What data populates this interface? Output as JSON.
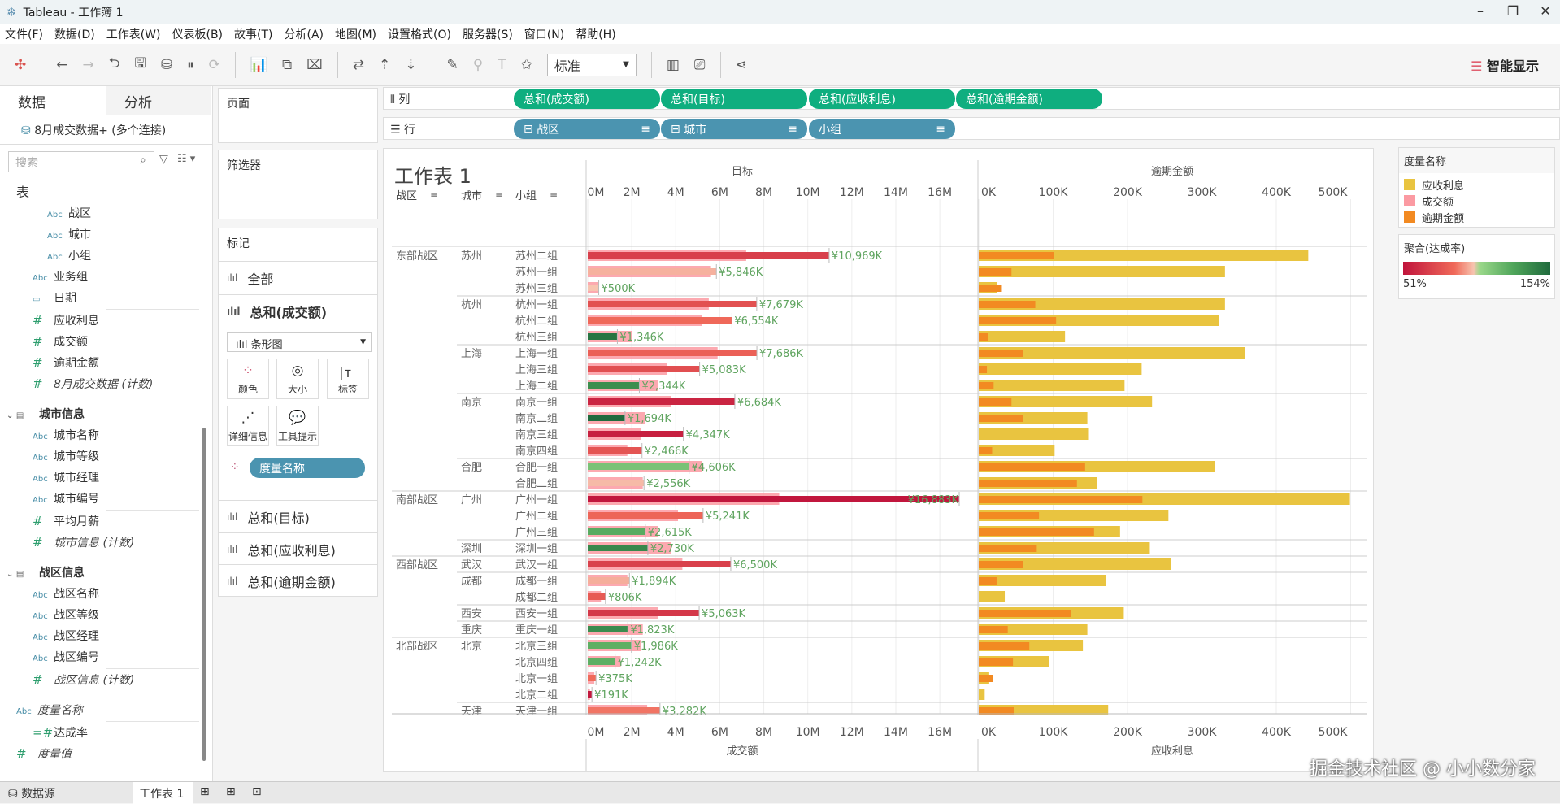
{
  "window": {
    "title": "Tableau - 工作簿 1",
    "minimize": "–",
    "restore": "❐",
    "close": "✕"
  },
  "menu": [
    "文件(F)",
    "数据(D)",
    "工作表(W)",
    "仪表板(B)",
    "故事(T)",
    "分析(A)",
    "地图(M)",
    "设置格式(O)",
    "服务器(S)",
    "窗口(N)",
    "帮助(H)"
  ],
  "toolbar": {
    "fit": "标准",
    "show_me": "智能显示"
  },
  "datapane": {
    "tab_data": "数据",
    "tab_analysis": "分析",
    "connection": "8月成交数据+ (多个连接)",
    "search_placeholder": "搜索",
    "fields": [
      {
        "t": "hdr0",
        "label": "表"
      },
      {
        "t": "dim",
        "label": "战区",
        "indent": 2
      },
      {
        "t": "dim",
        "label": "城市",
        "indent": 2
      },
      {
        "t": "dim",
        "label": "小组",
        "indent": 2
      },
      {
        "t": "dim",
        "label": "业务组"
      },
      {
        "t": "date",
        "label": "日期"
      },
      {
        "t": "line"
      },
      {
        "t": "num",
        "label": "应收利息"
      },
      {
        "t": "num",
        "label": "成交额"
      },
      {
        "t": "num",
        "label": "逾期金额"
      },
      {
        "t": "numi",
        "label": "8月成交数据 (计数)"
      },
      {
        "t": "sp"
      },
      {
        "t": "hdr",
        "label": "城市信息"
      },
      {
        "t": "dim",
        "label": "城市名称"
      },
      {
        "t": "dim",
        "label": "城市等级"
      },
      {
        "t": "dim",
        "label": "城市经理"
      },
      {
        "t": "dim",
        "label": "城市编号"
      },
      {
        "t": "line"
      },
      {
        "t": "num",
        "label": "平均月薪"
      },
      {
        "t": "numi",
        "label": "城市信息 (计数)"
      },
      {
        "t": "sp"
      },
      {
        "t": "hdr",
        "label": "战区信息"
      },
      {
        "t": "dim",
        "label": "战区名称"
      },
      {
        "t": "dim",
        "label": "战区等级"
      },
      {
        "t": "dim",
        "label": "战区经理"
      },
      {
        "t": "dim",
        "label": "战区编号"
      },
      {
        "t": "line"
      },
      {
        "t": "numi",
        "label": "战区信息 (计数)"
      },
      {
        "t": "sp"
      },
      {
        "t": "dimi",
        "label": "度量名称",
        "indent": 0
      },
      {
        "t": "line"
      },
      {
        "t": "calc",
        "label": "达成率"
      },
      {
        "t": "numi",
        "label": "度量值",
        "indent": 0
      }
    ]
  },
  "shelves": {
    "pages": "页面",
    "filters": "筛选器",
    "columns_label": "列",
    "rows_label": "行",
    "columns": [
      "总和(成交额)",
      "总和(目标)",
      "总和(应收利息)",
      "总和(逾期金额)"
    ],
    "rows": [
      "战区",
      "城市",
      "小组"
    ]
  },
  "marks": {
    "title": "标记",
    "all": "全部",
    "m1": "总和(成交额)",
    "mark_type": "条形图",
    "color": "颜色",
    "size": "大小",
    "label": "标签",
    "detail": "详细信息",
    "tooltip": "工具提示",
    "color_pill": "度量名称",
    "m2": "总和(目标)",
    "m3": "总和(应收利息)",
    "m4": "总和(逾期金额)"
  },
  "legend": {
    "title": "度量名称",
    "items": [
      {
        "label": "应收利息",
        "color": "#e9c440"
      },
      {
        "label": "成交额",
        "color": "#fb9aa2"
      },
      {
        "label": "逾期金额",
        "color": "#f28a22"
      }
    ],
    "rate_title": "聚合(达成率)",
    "rate_min": "51%",
    "rate_max": "154%"
  },
  "tabs": {
    "datasource": "数据源",
    "sheet": "工作表 1"
  },
  "watermark": "掘金技术社区 @ 小小数分家",
  "chart_data": {
    "type": "bar",
    "title": "工作表 1",
    "row_headers": [
      "战区",
      "城市",
      "小组"
    ],
    "left": {
      "top_title": "目标",
      "bottom_title": "成交额",
      "ticks": [
        "0M",
        "2M",
        "4M",
        "6M",
        "8M",
        "10M",
        "12M",
        "14M",
        "16M"
      ],
      "xlim": [
        0,
        16
      ]
    },
    "right": {
      "top_title": "逾期金额",
      "bottom_title": "应收利息",
      "ticks": [
        "0K",
        "100K",
        "200K",
        "300K",
        "400K",
        "500K"
      ],
      "xlim": [
        0,
        500
      ]
    },
    "rows": [
      {
        "region": "东部战区",
        "city": "苏州",
        "group": "苏州二组",
        "deal": 7.2,
        "target": 10.969,
        "label": "¥10,969K",
        "interest": 443,
        "overdue": 101
      },
      {
        "region": "",
        "city": "",
        "group": "苏州一组",
        "deal": 5.6,
        "target": 5.846,
        "label": "¥5,846K",
        "interest": 331,
        "overdue": 44
      },
      {
        "region": "",
        "city": "",
        "group": "苏州三组",
        "deal": 0.5,
        "target": 0.5,
        "label": "¥500K",
        "interest": 25,
        "overdue": 30
      },
      {
        "region": "",
        "city": "杭州",
        "group": "杭州一组",
        "deal": 5.5,
        "target": 7.679,
        "label": "¥7,679K",
        "interest": 331,
        "overdue": 76
      },
      {
        "region": "",
        "city": "",
        "group": "杭州二组",
        "deal": 5.2,
        "target": 6.554,
        "label": "¥6,554K",
        "interest": 323,
        "overdue": 104
      },
      {
        "region": "",
        "city": "",
        "group": "杭州三组",
        "deal": 2.0,
        "target": 1.346,
        "label": "¥1,346K",
        "interest": 116,
        "overdue": 12
      },
      {
        "region": "",
        "city": "上海",
        "group": "上海一组",
        "deal": 5.9,
        "target": 7.686,
        "label": "¥7,686K",
        "interest": 358,
        "overdue": 60
      },
      {
        "region": "",
        "city": "",
        "group": "上海三组",
        "deal": 3.6,
        "target": 5.083,
        "label": "¥5,083K",
        "interest": 219,
        "overdue": 11
      },
      {
        "region": "",
        "city": "",
        "group": "上海二组",
        "deal": 3.2,
        "target": 2.344,
        "label": "¥2,344K",
        "interest": 196,
        "overdue": 20
      },
      {
        "region": "",
        "city": "南京",
        "group": "南京一组",
        "deal": 3.8,
        "target": 6.684,
        "label": "¥6,684K",
        "interest": 233,
        "overdue": 44
      },
      {
        "region": "",
        "city": "",
        "group": "南京二组",
        "deal": 2.6,
        "target": 1.694,
        "label": "¥1,694K",
        "interest": 146,
        "overdue": 60
      },
      {
        "region": "",
        "city": "",
        "group": "南京三组",
        "deal": 2.4,
        "target": 4.347,
        "label": "¥4,347K",
        "interest": 147,
        "overdue": 0
      },
      {
        "region": "",
        "city": "",
        "group": "南京四组",
        "deal": 1.8,
        "target": 2.466,
        "label": "¥2,466K",
        "interest": 102,
        "overdue": 18
      },
      {
        "region": "",
        "city": "合肥",
        "group": "合肥一组",
        "deal": 5.2,
        "target": 4.606,
        "label": "¥4,606K",
        "interest": 317,
        "overdue": 143
      },
      {
        "region": "",
        "city": "",
        "group": "合肥二组",
        "deal": 2.5,
        "target": 2.556,
        "label": "¥2,556K",
        "interest": 159,
        "overdue": 132
      },
      {
        "region": "南部战区",
        "city": "广州",
        "group": "广州一组",
        "deal": 8.7,
        "target": 16.883,
        "label": "¥16,883K",
        "interest": 499,
        "overdue": 220
      },
      {
        "region": "",
        "city": "",
        "group": "广州二组",
        "deal": 4.1,
        "target": 5.241,
        "label": "¥5,241K",
        "interest": 255,
        "overdue": 81
      },
      {
        "region": "",
        "city": "",
        "group": "广州三组",
        "deal": 3.2,
        "target": 2.615,
        "label": "¥2,615K",
        "interest": 190,
        "overdue": 155
      },
      {
        "region": "",
        "city": "深圳",
        "group": "深圳一组",
        "deal": 3.8,
        "target": 2.73,
        "label": "¥2,730K",
        "interest": 230,
        "overdue": 78
      },
      {
        "region": "西部战区",
        "city": "武汉",
        "group": "武汉一组",
        "deal": 4.3,
        "target": 6.5,
        "label": "¥6,500K",
        "interest": 258,
        "overdue": 60
      },
      {
        "region": "",
        "city": "成都",
        "group": "成都一组",
        "deal": 1.8,
        "target": 1.894,
        "label": "¥1,894K",
        "interest": 171,
        "overdue": 24
      },
      {
        "region": "",
        "city": "",
        "group": "成都二组",
        "deal": 0.6,
        "target": 0.806,
        "label": "¥806K",
        "interest": 35,
        "overdue": 0
      },
      {
        "region": "",
        "city": "西安",
        "group": "西安一组",
        "deal": 3.2,
        "target": 5.063,
        "label": "¥5,063K",
        "interest": 195,
        "overdue": 124
      },
      {
        "region": "",
        "city": "重庆",
        "group": "重庆一组",
        "deal": 2.5,
        "target": 1.823,
        "label": "¥1,823K",
        "interest": 146,
        "overdue": 39
      },
      {
        "region": "北部战区",
        "city": "北京",
        "group": "北京三组",
        "deal": 2.4,
        "target": 1.986,
        "label": "¥1,986K",
        "interest": 140,
        "overdue": 68
      },
      {
        "region": "",
        "city": "",
        "group": "北京四组",
        "deal": 1.5,
        "target": 1.242,
        "label": "¥1,242K",
        "interest": 95,
        "overdue": 46
      },
      {
        "region": "",
        "city": "",
        "group": "北京一组",
        "deal": 0.3,
        "target": 0.375,
        "label": "¥375K",
        "interest": 13,
        "overdue": 19
      },
      {
        "region": "",
        "city": "",
        "group": "北京二组",
        "deal": 0.1,
        "target": 0.191,
        "label": "¥191K",
        "interest": 8,
        "overdue": 0
      },
      {
        "region": "",
        "city": "天津",
        "group": "天津一组",
        "deal": 2.7,
        "target": 3.282,
        "label": "¥3,282K",
        "interest": 174,
        "overdue": 47
      }
    ]
  }
}
